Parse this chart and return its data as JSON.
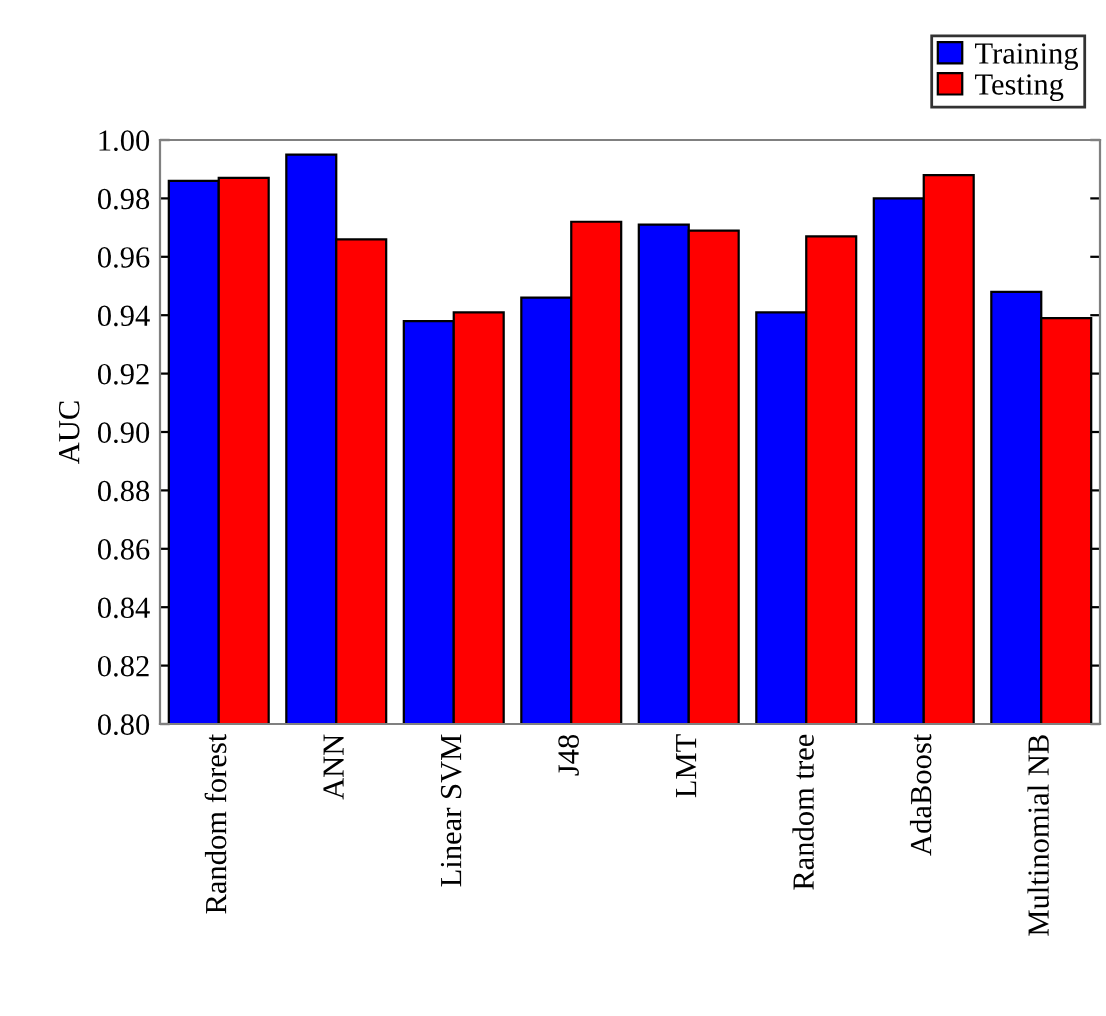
{
  "chart_data": {
    "type": "bar",
    "ylabel": "AUC",
    "categories": [
      "Random forest",
      "ANN",
      "Linear SVM",
      "J48",
      "LMT",
      "Random tree",
      "AdaBoost",
      "Multinomial NB"
    ],
    "series": [
      {
        "name": "Training",
        "color": "#0000ff",
        "values": [
          0.986,
          0.995,
          0.938,
          0.946,
          0.971,
          0.941,
          0.98,
          0.948
        ]
      },
      {
        "name": "Testing",
        "color": "#ff0000",
        "values": [
          0.987,
          0.966,
          0.941,
          0.972,
          0.969,
          0.967,
          0.988,
          0.939
        ]
      }
    ],
    "ylim": [
      0.8,
      1.0
    ],
    "yticks": [
      {
        "value": 0.8,
        "label": "0.80"
      },
      0.82,
      0.84,
      0.86,
      0.88,
      {
        "value": 0.9,
        "label": "0.90"
      },
      0.92,
      0.94,
      0.96,
      0.98,
      {
        "value": 1.0,
        "label": "1.00"
      }
    ],
    "grid": false,
    "legend": "top right"
  }
}
